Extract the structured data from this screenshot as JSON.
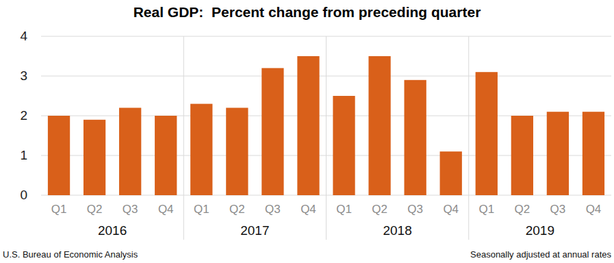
{
  "chart_data": {
    "type": "bar",
    "title": "Real GDP:  Percent change from preceding quarter",
    "categories": [
      "Q1",
      "Q2",
      "Q3",
      "Q4",
      "Q1",
      "Q2",
      "Q3",
      "Q4",
      "Q1",
      "Q2",
      "Q3",
      "Q4",
      "Q1",
      "Q2",
      "Q3",
      "Q4"
    ],
    "groups": [
      "2016",
      "2017",
      "2018",
      "2019"
    ],
    "values": [
      2.0,
      1.9,
      2.2,
      2.0,
      2.3,
      2.2,
      3.2,
      3.5,
      2.5,
      3.5,
      2.9,
      1.1,
      3.1,
      2.0,
      2.1,
      2.1
    ],
    "color": "#d9601a",
    "ylim": [
      0,
      4
    ],
    "yticks": [
      0,
      1,
      2,
      3,
      4
    ],
    "grid": true,
    "source": "U.S. Bureau of Economic Analysis",
    "note": "Seasonally adjusted at annual rates"
  }
}
